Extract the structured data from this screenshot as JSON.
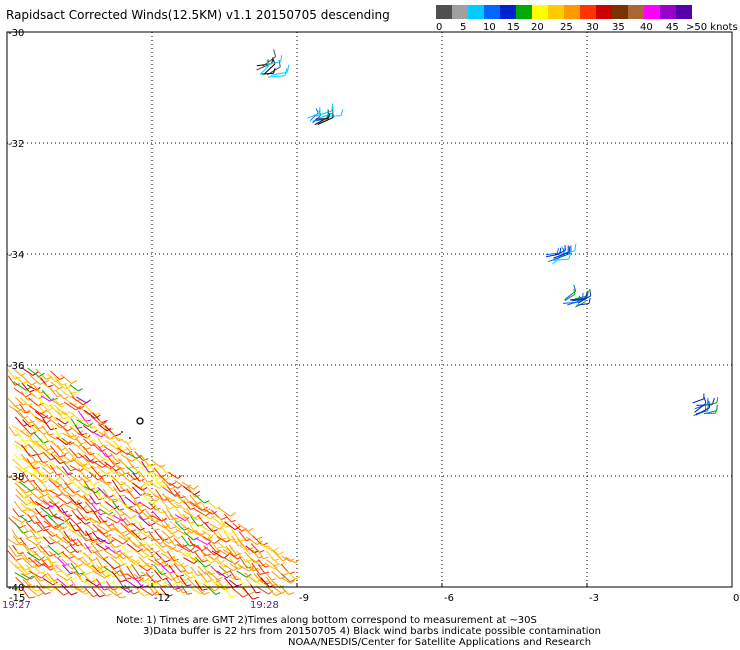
{
  "title": "Rapidsact Corrected Winds(12.5KM) v1.1 20150705 descending",
  "legend": {
    "swatches": [
      {
        "color": "#505050"
      },
      {
        "color": "#a0a0a0"
      },
      {
        "color": "#00ccff"
      },
      {
        "color": "#0066ff"
      },
      {
        "color": "#0022cc"
      },
      {
        "color": "#00aa00"
      },
      {
        "color": "#ffff00"
      },
      {
        "color": "#ffcc00"
      },
      {
        "color": "#ff9900"
      },
      {
        "color": "#ff3300"
      },
      {
        "color": "#cc0000"
      },
      {
        "color": "#7a3300"
      },
      {
        "color": "#aa6633"
      },
      {
        "color": "#ff00ff"
      },
      {
        "color": "#9900cc"
      },
      {
        "color": "#5500aa"
      }
    ],
    "labels": [
      "0",
      "5",
      "10",
      "15",
      "20",
      "25",
      "30",
      "35",
      "40",
      "45",
      ">50 knots"
    ]
  },
  "axes": {
    "lon_ticks": [
      "-15",
      "-12",
      "-9",
      "-6",
      "-3",
      "0"
    ],
    "lat_ticks": [
      "-30",
      "-32",
      "-34",
      "-36",
      "-38",
      "-40"
    ],
    "lon_range": [
      -15,
      0
    ],
    "lat_range": [
      -40,
      -30
    ],
    "grid": true
  },
  "times": {
    "start": "19:27",
    "end": "19:28"
  },
  "footer": {
    "line1": "Note: 1) Times are GMT 2)Times along bottom correspond to measurement at ~30S",
    "line2": "3)Data buffer is 22 hrs from 20150705 4) Black wind barbs indicate possible contamination",
    "line3": "NOAA/NESDIS/Center for Satellite Applications and Research"
  },
  "map_data": {
    "wind_clusters": [
      {
        "lon": -9.7,
        "lat": -30.7,
        "colors": [
          "#00ccff",
          "#000000",
          "#505050"
        ]
      },
      {
        "lon": -8.6,
        "lat": -31.6,
        "colors": [
          "#00ccff",
          "#0066ff",
          "#000000"
        ]
      },
      {
        "lon": -3.7,
        "lat": -34.1,
        "colors": [
          "#0022cc",
          "#0066ff",
          "#00ccff"
        ]
      },
      {
        "lon": -3.3,
        "lat": -34.9,
        "colors": [
          "#0022cc",
          "#0066ff",
          "#00aa00"
        ]
      },
      {
        "lon": -0.7,
        "lat": -36.8,
        "colors": [
          "#0022cc",
          "#0066ff",
          "#00aa00"
        ]
      }
    ],
    "wind_swath": {
      "colors": [
        "#ff9900",
        "#ffcc00",
        "#ff3300",
        "#cc0000",
        "#ffff00",
        "#00aa00",
        "#aa6633",
        "#ff00ff",
        "#9900cc"
      ]
    }
  }
}
